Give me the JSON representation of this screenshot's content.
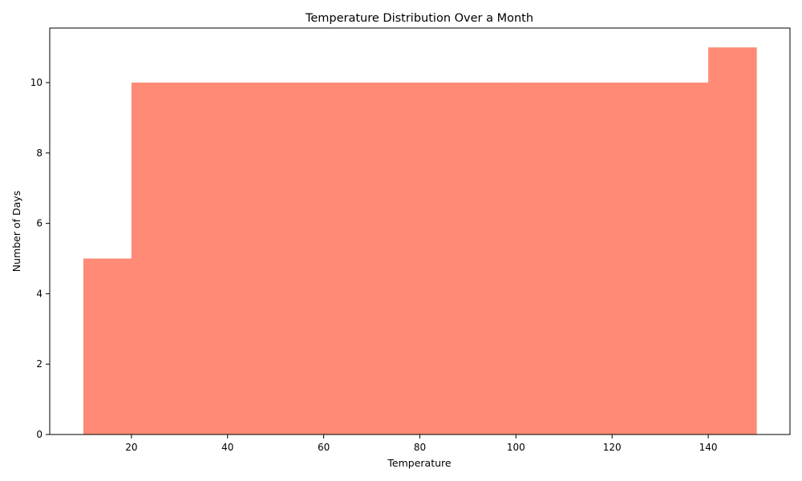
{
  "chart_data": {
    "type": "bar",
    "title": "Temperature Distribution Over a Month",
    "xlabel": "Temperature",
    "ylabel": "Number of Days",
    "bins": [
      {
        "x0": 10,
        "x1": 20,
        "value": 5
      },
      {
        "x0": 20,
        "x1": 30,
        "value": 10
      },
      {
        "x0": 30,
        "x1": 40,
        "value": 10
      },
      {
        "x0": 40,
        "x1": 50,
        "value": 10
      },
      {
        "x0": 50,
        "x1": 60,
        "value": 10
      },
      {
        "x0": 60,
        "x1": 70,
        "value": 10
      },
      {
        "x0": 70,
        "x1": 80,
        "value": 10
      },
      {
        "x0": 80,
        "x1": 90,
        "value": 10
      },
      {
        "x0": 90,
        "x1": 100,
        "value": 10
      },
      {
        "x0": 100,
        "x1": 110,
        "value": 10
      },
      {
        "x0": 110,
        "x1": 120,
        "value": 10
      },
      {
        "x0": 120,
        "x1": 130,
        "value": 10
      },
      {
        "x0": 130,
        "x1": 140,
        "value": 10
      },
      {
        "x0": 140,
        "x1": 150,
        "value": 11
      }
    ],
    "xlim": [
      3,
      157
    ],
    "ylim": [
      0,
      11.55
    ],
    "xticks": [
      20,
      40,
      60,
      80,
      100,
      120,
      140
    ],
    "yticks": [
      0,
      2,
      4,
      6,
      8,
      10
    ],
    "bar_color": "#ff8a75",
    "grid": false,
    "legend": false
  }
}
